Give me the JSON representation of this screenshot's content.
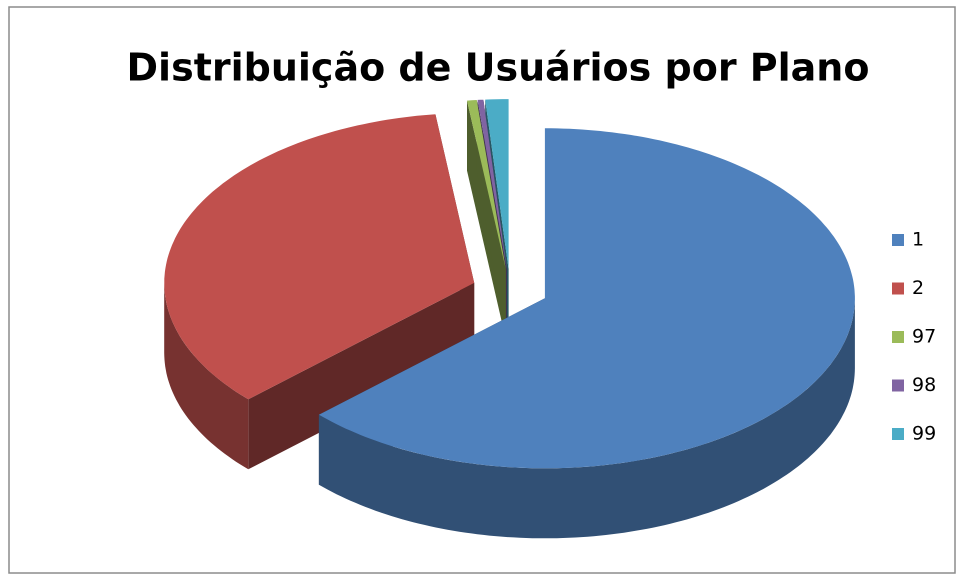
{
  "chart_data": {
    "type": "pie",
    "title": "Distribuição de Usuários por Plano",
    "categories": [
      "1",
      "2",
      "97",
      "98",
      "99"
    ],
    "values": [
      63,
      35,
      0.5,
      0.3,
      1.2
    ],
    "colors": [
      "#4f81bd",
      "#c0504d",
      "#9bbb59",
      "#8064a2",
      "#4bacc6"
    ],
    "legend": "right"
  }
}
